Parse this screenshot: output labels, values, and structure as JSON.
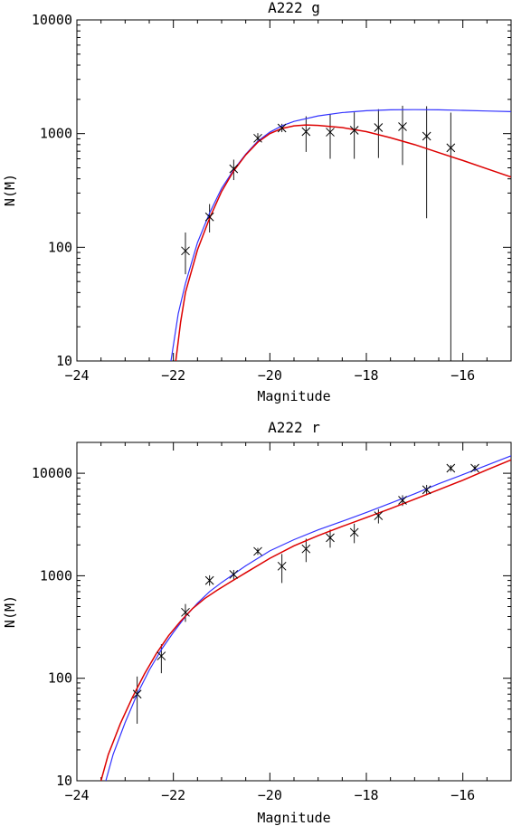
{
  "chart_data": [
    {
      "type": "scatter",
      "title": "A222 g",
      "xlabel": "Magnitude",
      "ylabel": "N(M)",
      "xlim": [
        -24,
        -15
      ],
      "ylim": [
        10,
        10000
      ],
      "yscale": "log",
      "x_ticks": [
        -24,
        -22,
        -20,
        -18,
        -16
      ],
      "y_ticks": [
        10,
        100,
        1000,
        10000
      ],
      "grid": false,
      "colors": {
        "model_blue": "#3333ff",
        "model_red": "#dd0000",
        "points": "#000000"
      },
      "points": [
        {
          "x": -21.75,
          "y": 93,
          "ylow": 58,
          "yhigh": 135
        },
        {
          "x": -21.25,
          "y": 185,
          "ylow": 135,
          "yhigh": 240
        },
        {
          "x": -20.75,
          "y": 490,
          "ylow": 390,
          "yhigh": 590
        },
        {
          "x": -20.25,
          "y": 910,
          "ylow": 830,
          "yhigh": 1010
        },
        {
          "x": -19.75,
          "y": 1120,
          "ylow": 1030,
          "yhigh": 1220
        },
        {
          "x": -19.25,
          "y": 1040,
          "ylow": 690,
          "yhigh": 1420
        },
        {
          "x": -18.75,
          "y": 1030,
          "ylow": 600,
          "yhigh": 1480
        },
        {
          "x": -18.25,
          "y": 1070,
          "ylow": 600,
          "yhigh": 1540
        },
        {
          "x": -17.75,
          "y": 1130,
          "ylow": 610,
          "yhigh": 1640
        },
        {
          "x": -17.25,
          "y": 1150,
          "ylow": 530,
          "yhigh": 1760
        },
        {
          "x": -16.75,
          "y": 950,
          "ylow": 180,
          "yhigh": 1740
        },
        {
          "x": -16.25,
          "y": 750,
          "ylow": 10,
          "yhigh": 1530
        }
      ],
      "blue_curve": {
        "x": [
          -22.05,
          -21.9,
          -21.75,
          -21.5,
          -21.25,
          -21.0,
          -20.75,
          -20.5,
          -20.25,
          -20.0,
          -19.75,
          -19.5,
          -19.0,
          -18.5,
          -18.0,
          -17.5,
          -17.0,
          -16.5,
          -16.0,
          -15.5,
          -15.0
        ],
        "y": [
          10,
          26,
          48,
          110,
          200,
          330,
          480,
          660,
          860,
          1030,
          1170,
          1280,
          1430,
          1530,
          1590,
          1620,
          1625,
          1620,
          1600,
          1580,
          1560
        ]
      },
      "red_curve": {
        "x": [
          -21.95,
          -21.85,
          -21.75,
          -21.5,
          -21.25,
          -21.0,
          -20.75,
          -20.5,
          -20.25,
          -20.0,
          -19.75,
          -19.5,
          -19.25,
          -19.0,
          -18.5,
          -18.0,
          -17.5,
          -17.0,
          -16.5,
          -16.0,
          -15.5,
          -15.0
        ],
        "y": [
          10,
          22,
          40,
          95,
          180,
          310,
          470,
          650,
          840,
          1000,
          1110,
          1170,
          1190,
          1180,
          1130,
          1040,
          920,
          800,
          680,
          580,
          490,
          415
        ]
      }
    },
    {
      "type": "scatter",
      "title": "A222 r",
      "xlabel": "Magnitude",
      "ylabel": "N(M)",
      "xlim": [
        -24,
        -15
      ],
      "ylim": [
        10,
        20000
      ],
      "yscale": "log",
      "x_ticks": [
        -24,
        -22,
        -20,
        -18,
        -16
      ],
      "y_ticks": [
        10,
        100,
        1000,
        10000
      ],
      "grid": false,
      "colors": {
        "model_blue": "#3333ff",
        "model_red": "#dd0000",
        "points": "#000000"
      },
      "points": [
        {
          "x": -22.75,
          "y": 70,
          "ylow": 36,
          "yhigh": 104
        },
        {
          "x": -22.25,
          "y": 165,
          "ylow": 112,
          "yhigh": 215
        },
        {
          "x": -21.75,
          "y": 440,
          "ylow": 355,
          "yhigh": 530
        },
        {
          "x": -21.25,
          "y": 900,
          "ylow": 800,
          "yhigh": 1010
        },
        {
          "x": -20.75,
          "y": 1030,
          "ylow": 920,
          "yhigh": 1140
        },
        {
          "x": -20.25,
          "y": 1730,
          "ylow": 1600,
          "yhigh": 1870
        },
        {
          "x": -19.75,
          "y": 1240,
          "ylow": 850,
          "yhigh": 1630
        },
        {
          "x": -19.25,
          "y": 1830,
          "ylow": 1360,
          "yhigh": 2300
        },
        {
          "x": -18.75,
          "y": 2350,
          "ylow": 1880,
          "yhigh": 2820
        },
        {
          "x": -18.25,
          "y": 2650,
          "ylow": 2080,
          "yhigh": 3220
        },
        {
          "x": -17.75,
          "y": 3850,
          "ylow": 3240,
          "yhigh": 4460
        },
        {
          "x": -17.25,
          "y": 5450,
          "ylow": 4800,
          "yhigh": 6100
        },
        {
          "x": -16.75,
          "y": 6900,
          "ylow": 6100,
          "yhigh": 7700
        },
        {
          "x": -16.25,
          "y": 11200,
          "ylow": 10400,
          "yhigh": 12000
        },
        {
          "x": -15.75,
          "y": 11200,
          "ylow": 10400,
          "yhigh": 12000
        }
      ],
      "blue_curve": {
        "x": [
          -23.4,
          -23.25,
          -23.0,
          -22.75,
          -22.5,
          -22.25,
          -22.0,
          -21.75,
          -21.5,
          -21.25,
          -21.0,
          -20.5,
          -20.0,
          -19.5,
          -19.0,
          -18.5,
          -18.0,
          -17.5,
          -17.0,
          -16.5,
          -16.0,
          -15.5,
          -15.0
        ],
        "y": [
          10,
          18,
          37,
          70,
          120,
          190,
          280,
          400,
          540,
          700,
          860,
          1250,
          1750,
          2250,
          2800,
          3400,
          4150,
          5100,
          6300,
          7900,
          9700,
          12000,
          14800
        ]
      },
      "red_curve": {
        "x": [
          -23.5,
          -23.35,
          -23.1,
          -22.85,
          -22.6,
          -22.35,
          -22.1,
          -21.85,
          -21.6,
          -21.35,
          -21.1,
          -20.85,
          -20.5,
          -20.0,
          -19.5,
          -19.0,
          -18.5,
          -18.0,
          -17.5,
          -17.0,
          -16.5,
          -16.0,
          -15.5,
          -15.0
        ],
        "y": [
          10,
          18,
          36,
          65,
          110,
          175,
          260,
          360,
          480,
          600,
          720,
          850,
          1070,
          1480,
          1960,
          2460,
          3030,
          3700,
          4520,
          5580,
          6900,
          8550,
          10800,
          13500
        ]
      }
    }
  ]
}
